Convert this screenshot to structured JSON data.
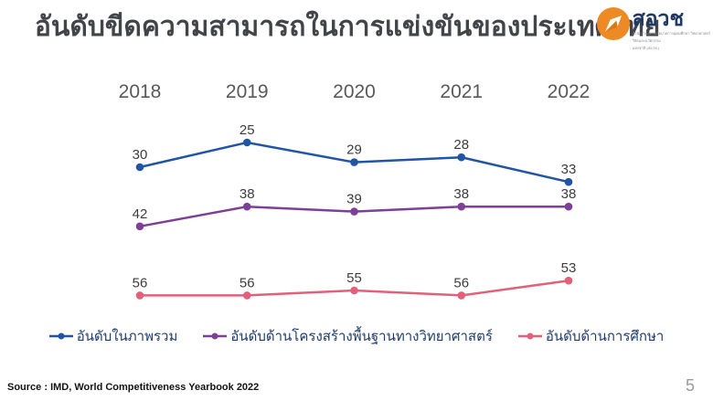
{
  "title": {
    "text": "อันดับขีดความสามารถในการแข่งขันของประเทศไทย"
  },
  "logo": {
    "wordmark": "สอวช",
    "subtext_lines": [
      "สำนักงานสภานโยบายการอุดมศึกษา วิทยาศาสตร์",
      "วิจัยและนวัตกรรม",
      "แห่งชาติ (สอวช.)"
    ],
    "orange": "#ee8a23",
    "navy": "#1f3864"
  },
  "chart_data": {
    "type": "line",
    "title": "อันดับขีดความสามารถในการแข่งขันของประเทศไทย",
    "categories": [
      "2018",
      "2019",
      "2020",
      "2021",
      "2022"
    ],
    "series": [
      {
        "name": "อันดับในภาพรวม",
        "values": [
          30,
          25,
          29,
          28,
          33
        ],
        "color": "#2155a4"
      },
      {
        "name": "อันดับด้านโครงสร้างพื้นฐานทางวิทยาศาสตร์",
        "values": [
          42,
          38,
          39,
          38,
          38
        ],
        "color": "#7d3f98"
      },
      {
        "name": "อันดับด้านการศึกษา",
        "values": [
          56,
          56,
          55,
          56,
          53
        ],
        "color": "#e2607a"
      }
    ],
    "xlabel": "",
    "ylabel": "",
    "y_axis": {
      "inverted": true,
      "domain": [
        25,
        56
      ]
    },
    "grid": false,
    "data_labels": true,
    "legend_position": "bottom"
  },
  "source": {
    "text": "Source : IMD, World Competitiveness Yearbook 2022"
  },
  "page_number": "5"
}
